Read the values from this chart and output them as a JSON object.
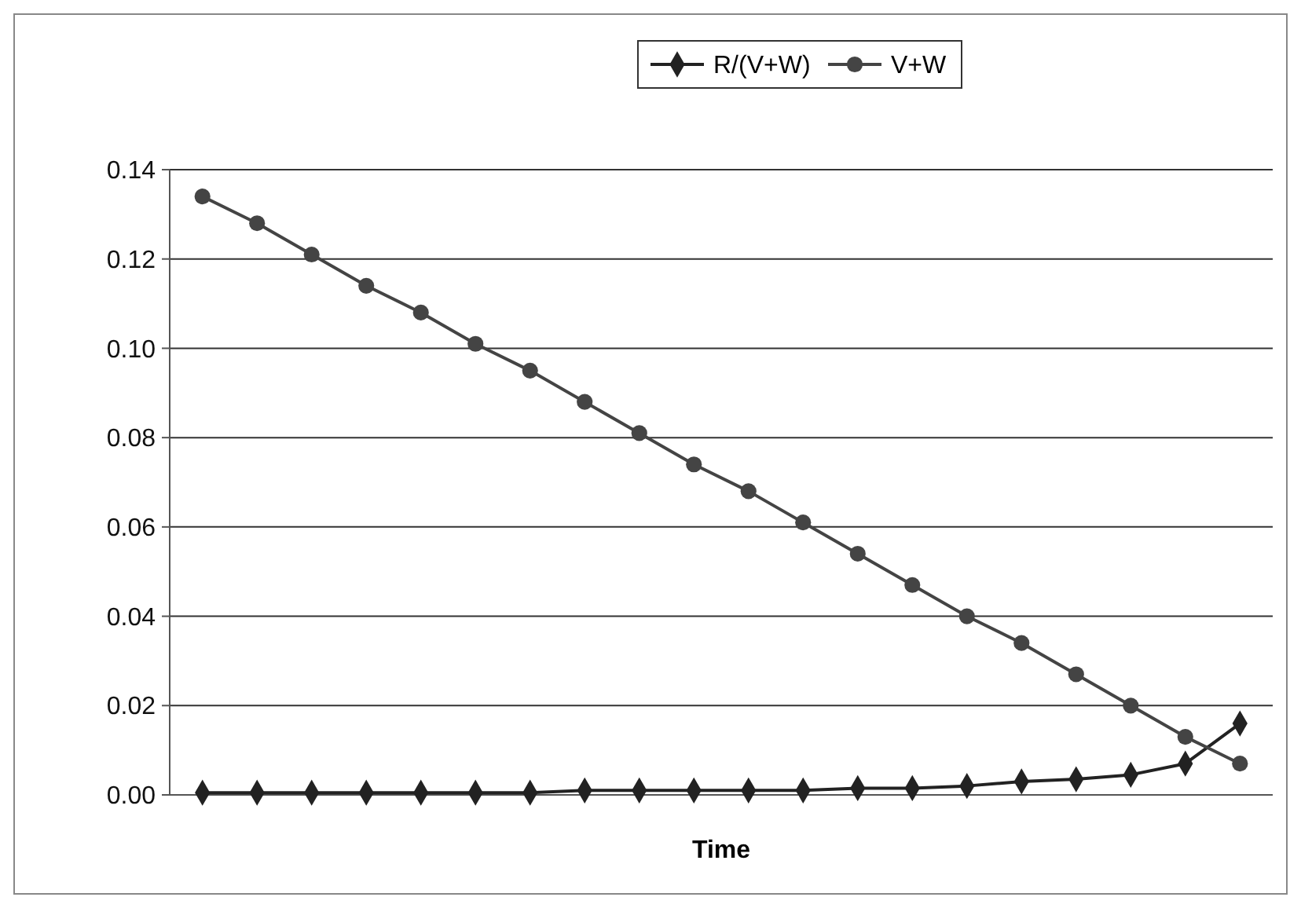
{
  "chart_data": {
    "type": "line",
    "xlabel": "Time",
    "categories": [
      null,
      null,
      null,
      null,
      null,
      null,
      null,
      null,
      null,
      null,
      null,
      null,
      null,
      null,
      null,
      null,
      null,
      null,
      null,
      null
    ],
    "series": [
      {
        "name": "R/(V+W)",
        "color": "#222222",
        "marker": "diamond",
        "values": [
          0.0005,
          0.0005,
          0.0005,
          0.0005,
          0.0005,
          0.0005,
          0.0005,
          0.001,
          0.001,
          0.001,
          0.001,
          0.001,
          0.0015,
          0.0015,
          0.002,
          0.003,
          0.0035,
          0.0045,
          0.007,
          0.016
        ]
      },
      {
        "name": "V+W",
        "color": "#444444",
        "marker": "circle",
        "values": [
          0.134,
          0.128,
          0.121,
          0.114,
          0.108,
          0.101,
          0.095,
          0.088,
          0.081,
          0.074,
          0.068,
          0.061,
          0.054,
          0.047,
          0.04,
          0.034,
          0.027,
          0.02,
          0.013,
          0.007
        ]
      }
    ],
    "ylim": [
      0,
      0.14
    ],
    "yticks": [
      {
        "value": 0,
        "label": "0.00"
      },
      {
        "value": 0.02,
        "label": "0.02"
      },
      {
        "value": 0.04,
        "label": "0.04"
      },
      {
        "value": 0.06,
        "label": "0.06"
      },
      {
        "value": 0.08,
        "label": "0.08"
      },
      {
        "value": 0.1,
        "label": "0.10"
      },
      {
        "value": 0.12,
        "label": "0.12"
      },
      {
        "value": 0.14,
        "label": "0.14"
      }
    ],
    "grid": "y",
    "legend": "top",
    "line_style": "solid"
  }
}
